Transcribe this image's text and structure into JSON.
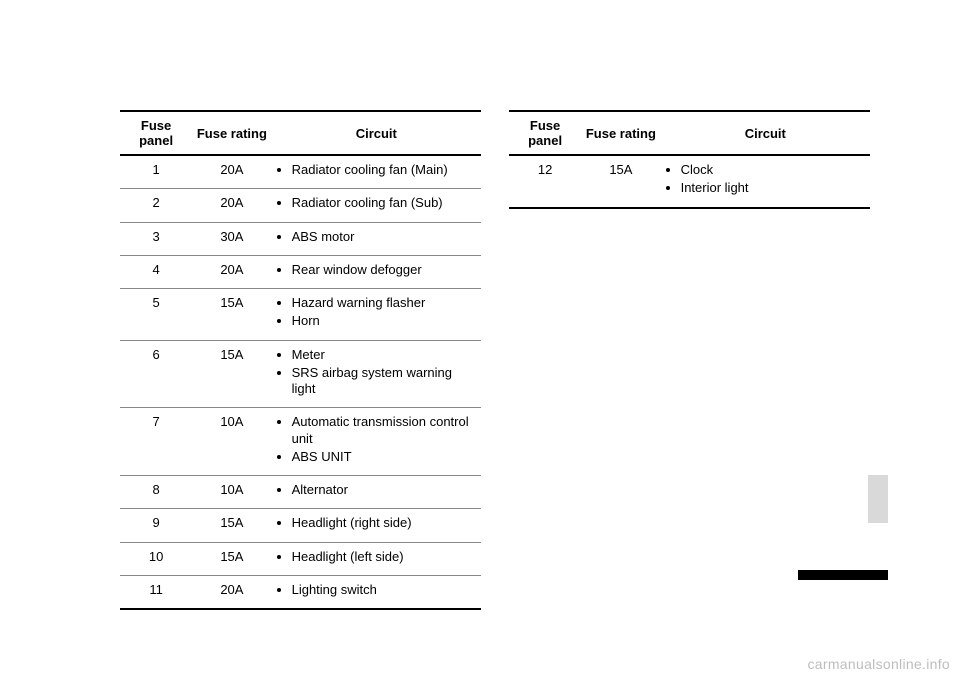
{
  "table_left": {
    "headers": {
      "panel": "Fuse panel",
      "rating": "Fuse rating",
      "circuit": "Circuit"
    },
    "rows": [
      {
        "panel": "1",
        "rating": "20A",
        "circuits": [
          "Radiator cooling fan (Main)"
        ]
      },
      {
        "panel": "2",
        "rating": "20A",
        "circuits": [
          "Radiator cooling fan (Sub)"
        ]
      },
      {
        "panel": "3",
        "rating": "30A",
        "circuits": [
          "ABS motor"
        ]
      },
      {
        "panel": "4",
        "rating": "20A",
        "circuits": [
          "Rear window defogger"
        ]
      },
      {
        "panel": "5",
        "rating": "15A",
        "circuits": [
          "Hazard warning flasher",
          "Horn"
        ]
      },
      {
        "panel": "6",
        "rating": "15A",
        "circuits": [
          "Meter",
          "SRS airbag system warning light"
        ]
      },
      {
        "panel": "7",
        "rating": "10A",
        "circuits": [
          "Automatic transmission control unit",
          "ABS UNIT"
        ]
      },
      {
        "panel": "8",
        "rating": "10A",
        "circuits": [
          "Alternator"
        ]
      },
      {
        "panel": "9",
        "rating": "15A",
        "circuits": [
          "Headlight (right side)"
        ]
      },
      {
        "panel": "10",
        "rating": "15A",
        "circuits": [
          "Headlight (left side)"
        ]
      },
      {
        "panel": "11",
        "rating": "20A",
        "circuits": [
          "Lighting switch"
        ]
      }
    ]
  },
  "table_right": {
    "headers": {
      "panel": "Fuse panel",
      "rating": "Fuse rating",
      "circuit": "Circuit"
    },
    "rows": [
      {
        "panel": "12",
        "rating": "15A",
        "circuits": [
          "Clock",
          "Interior light"
        ]
      }
    ]
  },
  "watermark": "carmanualsonline.info",
  "style": {
    "page_bg": "#ffffff",
    "text_color": "#000000",
    "header_border_color": "#000000",
    "row_border_color": "#888888",
    "watermark_color": "#bdbdbd",
    "side_tab_color": "#d9d9d9",
    "black_bar_color": "#000000",
    "font_size_body": 13,
    "font_size_watermark": 14,
    "col_widths_pct": {
      "panel": 20,
      "rating": 22,
      "circuit": 58
    }
  }
}
